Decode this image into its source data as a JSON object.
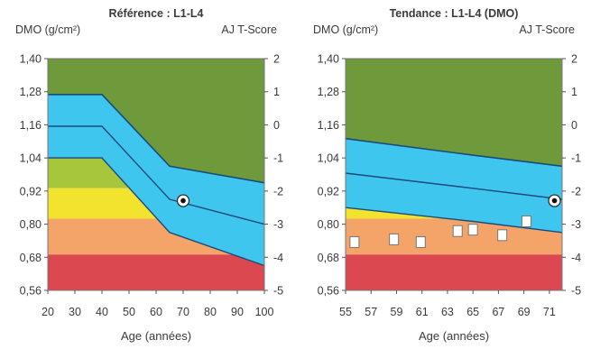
{
  "chart_data": [
    {
      "type": "area",
      "title": "Référence : L1-L4",
      "ylabel_left": "DMO (g/cm²)",
      "ylabel_right": "AJ T-Score",
      "xlabel": "Age (années)",
      "x_ticks": [
        20,
        30,
        40,
        50,
        60,
        70,
        80,
        90,
        100
      ],
      "y_ticks": [
        "1,40",
        "1,28",
        "1,16",
        "1,04",
        "0,92",
        "0,80",
        "0,68",
        "0,56"
      ],
      "y_values": [
        1.4,
        1.28,
        1.16,
        1.04,
        0.92,
        0.8,
        0.68,
        0.56
      ],
      "right_ticks": [
        "2",
        "1",
        "0",
        "-1",
        "-2",
        "-3",
        "-4",
        "-5"
      ],
      "xlim": [
        20,
        100
      ],
      "ylim": [
        0.56,
        1.4
      ],
      "bands": [
        {
          "color": "#6f9a3c",
          "upper": [
            [
              20,
              1.4
            ],
            [
              100,
              1.4
            ]
          ],
          "lower": [
            [
              20,
              1.27
            ],
            [
              40,
              1.27
            ],
            [
              65,
              1.01
            ],
            [
              100,
              0.95
            ]
          ]
        },
        {
          "color": "#a6c63c",
          "upper": [
            [
              20,
              1.04
            ],
            [
              42,
              1.04
            ],
            [
              65,
              1.01
            ],
            [
              100,
              0.95
            ]
          ],
          "lower": [
            [
              20,
              0.93
            ],
            [
              100,
              0.93
            ]
          ]
        },
        {
          "color": "#f2e42e",
          "upper": [
            [
              20,
              0.93
            ],
            [
              100,
              0.93
            ]
          ],
          "lower": [
            [
              20,
              0.82
            ],
            [
              100,
              0.82
            ]
          ]
        },
        {
          "color": "#f4a468",
          "upper": [
            [
              20,
              0.82
            ],
            [
              100,
              0.82
            ]
          ],
          "lower": [
            [
              20,
              0.69
            ],
            [
              100,
              0.69
            ]
          ]
        },
        {
          "color": "#dc4850",
          "upper": [
            [
              20,
              0.69
            ],
            [
              100,
              0.69
            ]
          ],
          "lower": [
            [
              20,
              0.56
            ],
            [
              100,
              0.56
            ]
          ]
        }
      ],
      "reference_band": {
        "color": "#3ec6ef",
        "upper": [
          [
            20,
            1.27
          ],
          [
            40,
            1.27
          ],
          [
            65,
            1.01
          ],
          [
            100,
            0.95
          ]
        ],
        "lower": [
          [
            20,
            1.04
          ],
          [
            40,
            1.04
          ],
          [
            65,
            0.77
          ],
          [
            100,
            0.65
          ]
        ],
        "center": [
          [
            20,
            1.155
          ],
          [
            40,
            1.155
          ],
          [
            65,
            0.89
          ],
          [
            100,
            0.8
          ]
        ]
      },
      "points": [
        {
          "x": 70,
          "y": 0.885,
          "style": "dot"
        }
      ]
    },
    {
      "type": "area",
      "title": "Tendance : L1-L4 (DMO)",
      "ylabel_left": "DMO (g/cm²)",
      "ylabel_right": "AJ T-Score",
      "xlabel": "Age (années)",
      "x_ticks": [
        55,
        57,
        59,
        61,
        63,
        65,
        67,
        69,
        71
      ],
      "y_ticks": [
        "1,40",
        "1,28",
        "1,16",
        "1,04",
        "0,92",
        "0,80",
        "0,68",
        "0,56"
      ],
      "y_values": [
        1.4,
        1.28,
        1.16,
        1.04,
        0.92,
        0.8,
        0.68,
        0.56
      ],
      "right_ticks": [
        "2",
        "1",
        "0",
        "-1",
        "-2",
        "-3",
        "-4",
        "-5"
      ],
      "xlim": [
        55,
        72
      ],
      "ylim": [
        0.56,
        1.4
      ],
      "bands": [
        {
          "color": "#6f9a3c",
          "upper": [
            [
              55,
              1.4
            ],
            [
              72,
              1.4
            ]
          ],
          "lower": [
            [
              55,
              1.11
            ],
            [
              72,
              1.01
            ]
          ]
        },
        {
          "color": "#a6c63c",
          "upper": [
            [
              55,
              1.11
            ],
            [
              72,
              1.01
            ]
          ],
          "lower": [
            [
              55,
              0.93
            ],
            [
              72,
              0.93
            ]
          ]
        },
        {
          "color": "#f2e42e",
          "upper": [
            [
              55,
              0.93
            ],
            [
              72,
              0.93
            ]
          ],
          "lower": [
            [
              55,
              0.82
            ],
            [
              72,
              0.82
            ]
          ]
        },
        {
          "color": "#f4a468",
          "upper": [
            [
              55,
              0.82
            ],
            [
              72,
              0.82
            ]
          ],
          "lower": [
            [
              55,
              0.69
            ],
            [
              72,
              0.69
            ]
          ]
        },
        {
          "color": "#dc4850",
          "upper": [
            [
              55,
              0.69
            ],
            [
              72,
              0.69
            ]
          ],
          "lower": [
            [
              55,
              0.56
            ],
            [
              72,
              0.56
            ]
          ]
        }
      ],
      "reference_band": {
        "color": "#3ec6ef",
        "upper": [
          [
            55,
            1.11
          ],
          [
            65,
            1.05
          ],
          [
            72,
            1.01
          ]
        ],
        "lower": [
          [
            55,
            0.86
          ],
          [
            65,
            0.81
          ],
          [
            72,
            0.77
          ]
        ],
        "center": [
          [
            55,
            0.985
          ],
          [
            65,
            0.93
          ],
          [
            72,
            0.89
          ]
        ]
      },
      "points": [
        {
          "x": 55.7,
          "y": 0.735,
          "style": "square"
        },
        {
          "x": 58.8,
          "y": 0.745,
          "style": "square"
        },
        {
          "x": 60.9,
          "y": 0.735,
          "style": "square"
        },
        {
          "x": 63.8,
          "y": 0.775,
          "style": "square"
        },
        {
          "x": 65.0,
          "y": 0.78,
          "style": "square"
        },
        {
          "x": 67.3,
          "y": 0.76,
          "style": "square"
        },
        {
          "x": 69.2,
          "y": 0.81,
          "style": "square"
        },
        {
          "x": 71.4,
          "y": 0.885,
          "style": "dot"
        }
      ]
    }
  ]
}
